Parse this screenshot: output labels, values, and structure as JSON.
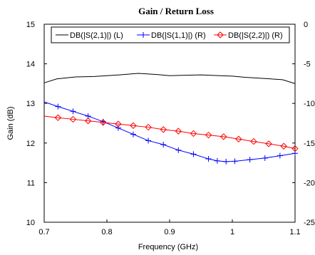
{
  "chart_data": {
    "type": "line",
    "title": "Gain / Return Loss",
    "xlabel": "Frequency (GHz)",
    "ylabel": "Gain (dB)",
    "xlim": [
      0.7,
      1.1
    ],
    "ylim": [
      10,
      15
    ],
    "y2lim": [
      -25,
      0
    ],
    "x_ticks": [
      "0.7",
      "0.8",
      "0.9",
      "1",
      "1.1"
    ],
    "y_ticks": [
      "10",
      "11",
      "12",
      "13",
      "14",
      "15"
    ],
    "y2_ticks": [
      "-25",
      "-20",
      "-15",
      "-10",
      "-5",
      "0"
    ],
    "grid": false,
    "legend_position": "top",
    "series": [
      {
        "name": "DB(|S(2,1)|) (L)",
        "axis": "left",
        "color": "#000000",
        "marker": "none",
        "x": [
          0.7,
          0.72,
          0.75,
          0.78,
          0.8,
          0.82,
          0.85,
          0.88,
          0.9,
          0.92,
          0.95,
          0.98,
          1.0,
          1.02,
          1.05,
          1.08,
          1.1
        ],
        "y": [
          13.52,
          13.62,
          13.67,
          13.68,
          13.7,
          13.72,
          13.76,
          13.73,
          13.7,
          13.71,
          13.72,
          13.7,
          13.69,
          13.66,
          13.63,
          13.6,
          13.5
        ]
      },
      {
        "name": "DB(|S(1,1)|) (R)",
        "axis": "right",
        "color": "#0000ff",
        "marker": "plus",
        "x": [
          0.7,
          0.722,
          0.746,
          0.77,
          0.794,
          0.818,
          0.842,
          0.866,
          0.89,
          0.914,
          0.938,
          0.962,
          0.976,
          0.99,
          1.004,
          1.028,
          1.052,
          1.076,
          1.1
        ],
        "y": [
          -9.8,
          -10.4,
          -11.0,
          -11.6,
          -12.3,
          -13.1,
          -13.9,
          -14.7,
          -15.2,
          -15.9,
          -16.4,
          -17.0,
          -17.25,
          -17.35,
          -17.3,
          -17.1,
          -16.9,
          -16.6,
          -16.3
        ]
      },
      {
        "name": "DB(|S(2,2)|) (R)",
        "axis": "right",
        "color": "#ff0000",
        "marker": "diamond",
        "x": [
          0.7,
          0.722,
          0.746,
          0.77,
          0.794,
          0.818,
          0.842,
          0.866,
          0.89,
          0.914,
          0.938,
          0.962,
          0.986,
          1.01,
          1.034,
          1.058,
          1.082,
          1.1
        ],
        "y": [
          -11.6,
          -11.8,
          -12.0,
          -12.2,
          -12.4,
          -12.6,
          -12.8,
          -13.0,
          -13.3,
          -13.5,
          -13.8,
          -14.0,
          -14.2,
          -14.5,
          -14.8,
          -15.1,
          -15.4,
          -15.7
        ]
      }
    ]
  }
}
